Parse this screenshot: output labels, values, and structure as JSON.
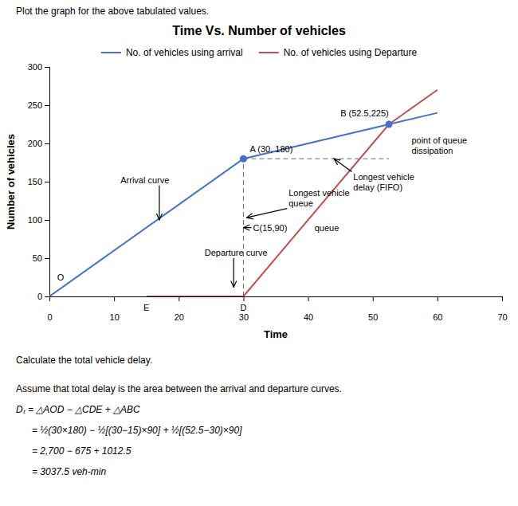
{
  "chart_data": {
    "type": "line",
    "title": "Time Vs. Number of vehicles",
    "caption": "Plot the graph for the above tabulated values.",
    "x_label": "Time",
    "y_label": "Number of vehicles",
    "xlim": [
      0,
      70
    ],
    "ylim": [
      0,
      300
    ],
    "xticks": [
      0,
      10,
      20,
      30,
      40,
      50,
      60,
      70
    ],
    "yticks": [
      0,
      50,
      100,
      150,
      200,
      250,
      300
    ],
    "grid": false,
    "legend": "top",
    "series": [
      {
        "name": "No. of vehicles using arrival",
        "color": "#4472C4",
        "x": [
          0,
          30,
          52.5,
          60
        ],
        "values": [
          0,
          180,
          225,
          240
        ]
      },
      {
        "name": "No. of vehicles using Departure",
        "color": "#C0504D",
        "x": [
          15,
          30,
          52.5,
          60
        ],
        "values": [
          0,
          0,
          225,
          270
        ]
      }
    ],
    "points": {
      "x": [
        30,
        52.5
      ],
      "values": [
        180,
        225
      ],
      "color": "#4472C4",
      "marker": "circle"
    },
    "reference_lines": [
      {
        "x": [
          30,
          30
        ],
        "values": [
          0,
          180
        ],
        "color": "#666666",
        "line_style": "dashed"
      },
      {
        "x": [
          30,
          52.5
        ],
        "values": [
          180,
          180
        ],
        "color": "#666666",
        "line_style": "dashed"
      }
    ],
    "annotations": [
      {
        "text": "O",
        "x": 1.2,
        "y": 18
      },
      {
        "text": "E",
        "x": 15,
        "y": -8
      },
      {
        "text": "D",
        "x": 30,
        "y": -8
      },
      {
        "text": "A (30, 180)",
        "x": 31,
        "y": 185
      },
      {
        "text": "B (52.5,225)",
        "x": 45,
        "y": 232
      },
      {
        "text": "point of queue\ndissipation",
        "x": 56,
        "y": 210
      },
      {
        "text": "Arrival curve",
        "x": 11,
        "y": 145,
        "arrow_x": 17,
        "arrow_y": 100
      },
      {
        "text": "Departure curve",
        "x": 24,
        "y": 50,
        "arrow_x": 28.5,
        "arrow_y": 12
      },
      {
        "text": "C(15,90)",
        "x": 31.5,
        "y": 90,
        "arrow_x": 30,
        "arrow_y": 90
      },
      {
        "text": "queue",
        "x": 41,
        "y": 90
      },
      {
        "text": "Longest vehicle\nqueue",
        "x": 37,
        "y": 115,
        "arrow_x": 30.5,
        "arrow_y": 103
      },
      {
        "text": "Longest vehicle\ndelay (FIFO)",
        "x": 47,
        "y": 162,
        "arrow_x": 44,
        "arrow_y": 180
      }
    ],
    "notes": [
      "Calculate the total vehicle delay.",
      "Assume that total delay is the area between the arrival and departure curves.",
      "Dₜ = △AOD − △CDE + △ABC",
      "   = ½(30×180) − ½[(30−15)×90] + ½[(52.5−30)×90]",
      "   = 2,700 − 675 + 1012.5",
      "   = 3037.5 veh-min"
    ]
  }
}
